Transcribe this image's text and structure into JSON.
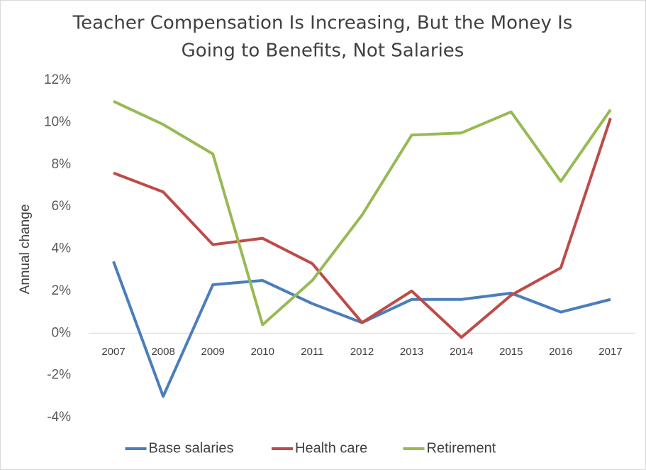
{
  "chart_data": {
    "type": "line",
    "title": [
      "Teacher Compensation Is Increasing, But the Money Is",
      "Going to Benefits, Not Salaries"
    ],
    "y_label": "Annual change",
    "categories": [
      "2007",
      "2008",
      "2009",
      "2010",
      "2011",
      "2012",
      "2013",
      "2014",
      "2015",
      "2016",
      "2017"
    ],
    "series": [
      {
        "name": "Base salaries",
        "color": "#4a7ebb",
        "values": [
          3.4,
          -3.0,
          2.3,
          2.5,
          1.4,
          0.5,
          1.6,
          1.6,
          1.9,
          1.0,
          1.6
        ]
      },
      {
        "name": "Health care",
        "color": "#be4b48",
        "values": [
          7.6,
          6.7,
          4.2,
          4.5,
          3.3,
          0.5,
          2.0,
          -0.2,
          1.8,
          3.1,
          10.2
        ]
      },
      {
        "name": "Retirement",
        "color": "#98b954",
        "values": [
          11.0,
          9.9,
          8.5,
          0.4,
          2.5,
          5.6,
          9.4,
          9.5,
          10.5,
          7.2,
          10.6
        ]
      }
    ],
    "ylim": [
      -4,
      12
    ],
    "yticks": [
      {
        "value": -4,
        "label": "-4%"
      },
      {
        "value": -2,
        "label": "-2%"
      },
      {
        "value": 0,
        "label": "0%"
      },
      {
        "value": 2,
        "label": "2%"
      },
      {
        "value": 4,
        "label": "4%"
      },
      {
        "value": 6,
        "label": "6%"
      },
      {
        "value": 8,
        "label": "8%"
      },
      {
        "value": 10,
        "label": "10%"
      },
      {
        "value": 12,
        "label": "12%"
      }
    ],
    "grid": false,
    "legend": "bottom"
  }
}
